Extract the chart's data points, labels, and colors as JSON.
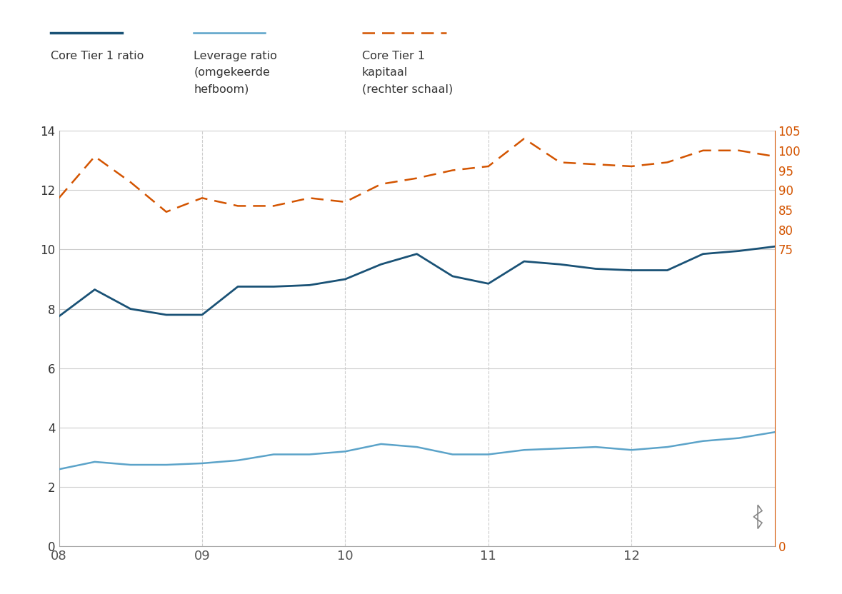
{
  "x_labels": [
    "08",
    "09",
    "10",
    "11",
    "12"
  ],
  "x_ticks": [
    0,
    4,
    8,
    12,
    16
  ],
  "x_range": [
    0,
    20
  ],
  "core_tier1_ratio": {
    "x": [
      0,
      1,
      2,
      3,
      4,
      5,
      6,
      7,
      8,
      9,
      10,
      11,
      12,
      13,
      14,
      15,
      16,
      17,
      18,
      19,
      20
    ],
    "y": [
      7.75,
      8.65,
      8.0,
      7.8,
      7.8,
      8.75,
      8.75,
      8.8,
      9.0,
      9.5,
      9.85,
      9.1,
      8.85,
      9.6,
      9.5,
      9.35,
      9.3,
      9.3,
      9.85,
      9.95,
      10.1
    ],
    "color": "#1a5276",
    "linewidth": 2.0
  },
  "leverage_ratio": {
    "x": [
      0,
      1,
      2,
      3,
      4,
      5,
      6,
      7,
      8,
      9,
      10,
      11,
      12,
      13,
      14,
      15,
      16,
      17,
      18,
      19,
      20
    ],
    "y": [
      2.6,
      2.85,
      2.75,
      2.75,
      2.8,
      2.9,
      3.1,
      3.1,
      3.2,
      3.45,
      3.35,
      3.1,
      3.1,
      3.25,
      3.3,
      3.35,
      3.25,
      3.35,
      3.55,
      3.65,
      3.85
    ],
    "color": "#5ba3c9",
    "linewidth": 1.8
  },
  "core_tier1_capital": {
    "x": [
      0,
      1,
      2,
      3,
      4,
      5,
      6,
      7,
      8,
      9,
      10,
      11,
      12,
      13,
      14,
      15,
      16,
      17,
      18,
      19,
      20
    ],
    "y": [
      88.0,
      98.5,
      92.0,
      84.5,
      88.0,
      86.0,
      86.0,
      88.0,
      87.0,
      91.5,
      93.0,
      95.0,
      96.0,
      103.0,
      97.0,
      96.5,
      96.0,
      97.0,
      100.0,
      100.0,
      98.5
    ],
    "color": "#d35400",
    "linewidth": 1.8,
    "linestyle": "--"
  },
  "ylim_left": [
    0,
    14
  ],
  "ylim_right": [
    0,
    105
  ],
  "yticks_left": [
    0,
    2,
    4,
    6,
    8,
    10,
    12,
    14
  ],
  "yticks_right": [
    0,
    75,
    80,
    85,
    90,
    95,
    100,
    105
  ],
  "bg_color": "#ffffff",
  "grid_color": "#cccccc",
  "legend_line1_label1": "Core Tier 1 ratio",
  "legend_line2_label1": "Leverage ratio",
  "legend_line2_label2": "(omgekeerde",
  "legend_line2_label3": "hefboom)",
  "legend_line3_label1": "Core Tier 1",
  "legend_line3_label2": "kapitaal",
  "legend_line3_label3": "(rechter schaal)"
}
